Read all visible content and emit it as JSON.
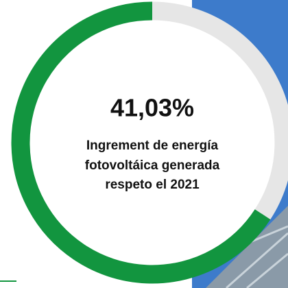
{
  "headline": "41,03%",
  "caption": [
    "Ingrement de energía",
    "fotovoltáica generada",
    "respeto el 2021"
  ]
}
